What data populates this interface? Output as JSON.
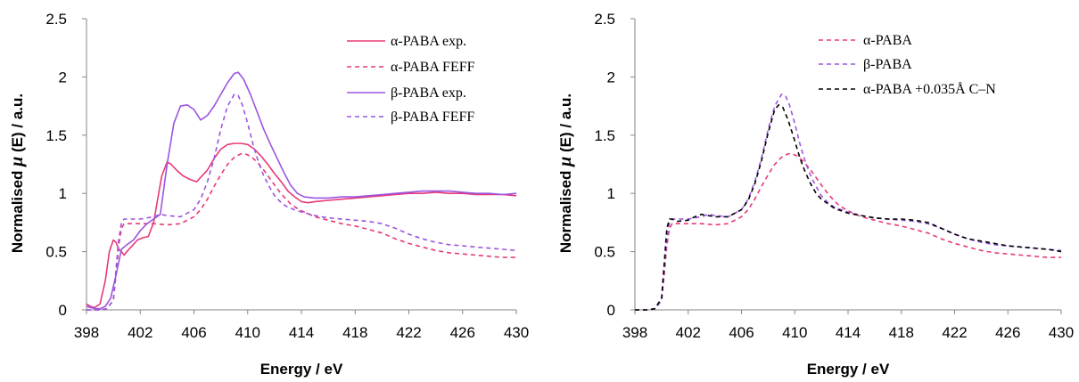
{
  "chart_data": [
    {
      "type": "line",
      "xlabel": "Energy / eV",
      "ylabel": "Normalised μ (E) / a.u.",
      "ylabel_prefix": "Normalised ",
      "ylabel_mu": "μ",
      "ylabel_suffix": " (E) / a.u.",
      "xlim": [
        398,
        430
      ],
      "ylim": [
        0,
        2.5
      ],
      "xticks": [
        "398",
        "402",
        "406",
        "410",
        "414",
        "418",
        "422",
        "426",
        "430"
      ],
      "yticks": [
        "0",
        "0.5",
        "1",
        "1.5",
        "2",
        "2.5"
      ],
      "grid": false,
      "legend_position": "top-right",
      "series": [
        {
          "name": "α-PABA exp.",
          "color": "#e8387a",
          "dash": "solid",
          "x": [
            398,
            398.3,
            398.6,
            399,
            399.4,
            399.7,
            400,
            400.2,
            400.4,
            400.6,
            400.8,
            401,
            401.4,
            401.8,
            402.2,
            402.6,
            403,
            403.3,
            403.6,
            404,
            404.3,
            404.7,
            405.2,
            405.7,
            406.2,
            406.6,
            407,
            407.5,
            408,
            408.5,
            409,
            409.5,
            410,
            410.5,
            411,
            411.5,
            412,
            412.5,
            413,
            413.5,
            414,
            414.5,
            415,
            416,
            417,
            418,
            419,
            420,
            421,
            422,
            423,
            424,
            425,
            426,
            427,
            428,
            429,
            430
          ],
          "y": [
            0.05,
            0.03,
            0.02,
            0.05,
            0.25,
            0.5,
            0.6,
            0.58,
            0.52,
            0.5,
            0.47,
            0.5,
            0.55,
            0.6,
            0.62,
            0.63,
            0.75,
            0.95,
            1.15,
            1.27,
            1.25,
            1.2,
            1.15,
            1.12,
            1.1,
            1.15,
            1.2,
            1.3,
            1.38,
            1.42,
            1.43,
            1.43,
            1.42,
            1.38,
            1.32,
            1.25,
            1.17,
            1.1,
            1.02,
            0.97,
            0.93,
            0.92,
            0.93,
            0.94,
            0.95,
            0.96,
            0.97,
            0.98,
            0.99,
            1.0,
            1.0,
            1.01,
            1.0,
            1.0,
            0.99,
            0.99,
            0.99,
            0.98
          ]
        },
        {
          "name": "α-PABA FEFF",
          "color": "#e8387a",
          "dash": "dashed",
          "x": [
            398,
            398.5,
            399,
            399.5,
            400,
            400.2,
            400.4,
            400.6,
            400.8,
            401.2,
            402,
            403,
            404,
            405,
            406,
            406.5,
            407,
            407.5,
            408,
            408.5,
            409,
            409.5,
            409.8,
            410.2,
            410.7,
            411.2,
            411.7,
            412.2,
            412.7,
            413.2,
            413.7,
            414.2,
            415,
            416,
            417,
            418,
            419,
            420,
            421,
            422,
            423,
            424,
            425,
            426,
            427,
            428,
            429,
            430
          ],
          "y": [
            0.0,
            0.0,
            0.0,
            0.01,
            0.08,
            0.3,
            0.55,
            0.7,
            0.74,
            0.74,
            0.74,
            0.74,
            0.73,
            0.74,
            0.8,
            0.86,
            0.95,
            1.06,
            1.16,
            1.25,
            1.31,
            1.34,
            1.34,
            1.32,
            1.27,
            1.2,
            1.12,
            1.04,
            0.97,
            0.91,
            0.87,
            0.84,
            0.8,
            0.77,
            0.74,
            0.72,
            0.69,
            0.66,
            0.61,
            0.57,
            0.54,
            0.51,
            0.49,
            0.48,
            0.47,
            0.46,
            0.45,
            0.45
          ]
        },
        {
          "name": "β-PABA exp.",
          "color": "#9a55e0",
          "dash": "solid",
          "x": [
            398,
            398.3,
            398.7,
            399,
            399.4,
            399.8,
            400.2,
            400.6,
            401,
            401.5,
            402,
            402.5,
            403,
            403.5,
            404,
            404.5,
            405,
            405.5,
            406,
            406.5,
            407,
            407.5,
            408,
            408.5,
            409,
            409.3,
            409.7,
            410.2,
            410.7,
            411.2,
            411.7,
            412.2,
            412.7,
            413.2,
            413.7,
            414.2,
            415,
            416,
            417,
            418,
            419,
            420,
            421,
            422,
            423,
            424,
            425,
            426,
            427,
            428,
            429,
            430
          ],
          "y": [
            0.03,
            0.02,
            0.01,
            0.01,
            0.03,
            0.1,
            0.3,
            0.52,
            0.56,
            0.6,
            0.68,
            0.74,
            0.78,
            0.82,
            1.25,
            1.6,
            1.75,
            1.76,
            1.72,
            1.63,
            1.67,
            1.75,
            1.85,
            1.95,
            2.03,
            2.04,
            1.98,
            1.85,
            1.7,
            1.55,
            1.42,
            1.3,
            1.18,
            1.07,
            1.0,
            0.97,
            0.96,
            0.96,
            0.97,
            0.97,
            0.98,
            0.99,
            1.0,
            1.01,
            1.02,
            1.02,
            1.02,
            1.01,
            1.0,
            1.0,
            0.99,
            1.0
          ]
        },
        {
          "name": "β-PABA FEFF",
          "color": "#9a55e0",
          "dash": "dashed",
          "x": [
            398,
            398.5,
            399,
            399.5,
            400,
            400.2,
            400.4,
            400.6,
            400.8,
            401.2,
            402,
            403,
            403.5,
            404,
            405,
            406,
            406.5,
            407,
            407.5,
            408,
            408.5,
            409,
            409.3,
            409.6,
            410,
            410.4,
            410.8,
            411.2,
            411.6,
            412,
            412.5,
            413,
            413.5,
            414,
            415,
            416,
            417,
            418,
            419,
            420,
            421,
            422,
            423,
            424,
            425,
            426,
            427,
            428,
            429,
            430
          ],
          "y": [
            0.0,
            0.0,
            0.0,
            0.01,
            0.08,
            0.35,
            0.6,
            0.75,
            0.78,
            0.78,
            0.78,
            0.8,
            0.82,
            0.81,
            0.8,
            0.86,
            0.95,
            1.1,
            1.3,
            1.55,
            1.75,
            1.85,
            1.84,
            1.76,
            1.6,
            1.42,
            1.27,
            1.15,
            1.06,
            0.98,
            0.92,
            0.88,
            0.86,
            0.84,
            0.81,
            0.79,
            0.78,
            0.77,
            0.76,
            0.74,
            0.7,
            0.65,
            0.61,
            0.58,
            0.56,
            0.55,
            0.54,
            0.53,
            0.52,
            0.51
          ]
        }
      ]
    },
    {
      "type": "line",
      "xlabel": "Energy / eV",
      "ylabel": "Normalised μ (E) / a.u.",
      "ylabel_prefix": "Normalised ",
      "ylabel_mu": "μ",
      "ylabel_suffix": " (E) / a.u.",
      "xlim": [
        398,
        430
      ],
      "ylim": [
        0,
        2.5
      ],
      "xticks": [
        "398",
        "402",
        "406",
        "410",
        "414",
        "418",
        "422",
        "426",
        "430"
      ],
      "yticks": [
        "0",
        "0.5",
        "1",
        "1.5",
        "2",
        "2.5"
      ],
      "grid": false,
      "legend_position": "top-right",
      "series": [
        {
          "name": "α-PABA",
          "color": "#e8387a",
          "dash": "dashed",
          "x": [
            398,
            398.5,
            399,
            399.5,
            400,
            400.2,
            400.4,
            400.6,
            400.8,
            401.2,
            402,
            403,
            404,
            405,
            406,
            406.5,
            407,
            407.5,
            408,
            408.5,
            409,
            409.5,
            409.8,
            410.2,
            410.7,
            411.2,
            411.7,
            412.2,
            412.7,
            413.2,
            413.7,
            414.2,
            415,
            416,
            417,
            418,
            419,
            420,
            421,
            422,
            423,
            424,
            425,
            426,
            427,
            428,
            429,
            430
          ],
          "y": [
            0.0,
            0.0,
            0.0,
            0.01,
            0.08,
            0.3,
            0.55,
            0.7,
            0.74,
            0.74,
            0.74,
            0.74,
            0.73,
            0.74,
            0.8,
            0.86,
            0.95,
            1.06,
            1.16,
            1.25,
            1.31,
            1.34,
            1.34,
            1.32,
            1.27,
            1.2,
            1.12,
            1.04,
            0.97,
            0.91,
            0.87,
            0.84,
            0.8,
            0.77,
            0.74,
            0.72,
            0.69,
            0.66,
            0.61,
            0.57,
            0.54,
            0.51,
            0.49,
            0.48,
            0.47,
            0.46,
            0.45,
            0.45
          ]
        },
        {
          "name": "β-PABA",
          "color": "#9a55e0",
          "dash": "dashed",
          "x": [
            398,
            398.5,
            399,
            399.5,
            400,
            400.2,
            400.4,
            400.6,
            400.8,
            401.2,
            402,
            403,
            403.5,
            404,
            405,
            406,
            406.5,
            407,
            407.5,
            408,
            408.5,
            409,
            409.3,
            409.6,
            410,
            410.4,
            410.8,
            411.2,
            411.6,
            412,
            412.5,
            413,
            413.5,
            414,
            415,
            416,
            417,
            418,
            419,
            420,
            421,
            422,
            423,
            424,
            425,
            426,
            427,
            428,
            429,
            430
          ],
          "y": [
            0.0,
            0.0,
            0.0,
            0.01,
            0.08,
            0.35,
            0.6,
            0.75,
            0.78,
            0.78,
            0.78,
            0.8,
            0.82,
            0.81,
            0.8,
            0.86,
            0.95,
            1.1,
            1.3,
            1.55,
            1.75,
            1.85,
            1.84,
            1.76,
            1.6,
            1.42,
            1.27,
            1.15,
            1.06,
            0.98,
            0.92,
            0.88,
            0.86,
            0.84,
            0.81,
            0.79,
            0.78,
            0.77,
            0.76,
            0.74,
            0.7,
            0.65,
            0.61,
            0.58,
            0.56,
            0.55,
            0.54,
            0.53,
            0.52,
            0.51
          ]
        },
        {
          "name": "α-PABA +0.035Å C–N",
          "color": "#000000",
          "dash": "dashed",
          "x": [
            398,
            398.5,
            399,
            399.5,
            400,
            400.2,
            400.4,
            400.6,
            400.8,
            401.2,
            402,
            402.5,
            403,
            403.5,
            404,
            405,
            406,
            406.5,
            407,
            407.5,
            408,
            408.5,
            408.8,
            409.1,
            409.5,
            410,
            410.4,
            410.8,
            411.2,
            411.6,
            412,
            412.5,
            413,
            413.5,
            414,
            415,
            416,
            417,
            418,
            419,
            420,
            421,
            422,
            423,
            424,
            425,
            426,
            427,
            428,
            429,
            430
          ],
          "y": [
            0.0,
            0.0,
            0.0,
            0.01,
            0.1,
            0.4,
            0.7,
            0.78,
            0.78,
            0.76,
            0.77,
            0.8,
            0.82,
            0.81,
            0.8,
            0.8,
            0.86,
            0.94,
            1.08,
            1.28,
            1.52,
            1.72,
            1.76,
            1.74,
            1.63,
            1.45,
            1.3,
            1.18,
            1.08,
            1.0,
            0.95,
            0.91,
            0.87,
            0.85,
            0.83,
            0.81,
            0.79,
            0.78,
            0.78,
            0.77,
            0.75,
            0.7,
            0.65,
            0.61,
            0.59,
            0.57,
            0.55,
            0.54,
            0.53,
            0.52,
            0.5
          ]
        }
      ]
    }
  ]
}
